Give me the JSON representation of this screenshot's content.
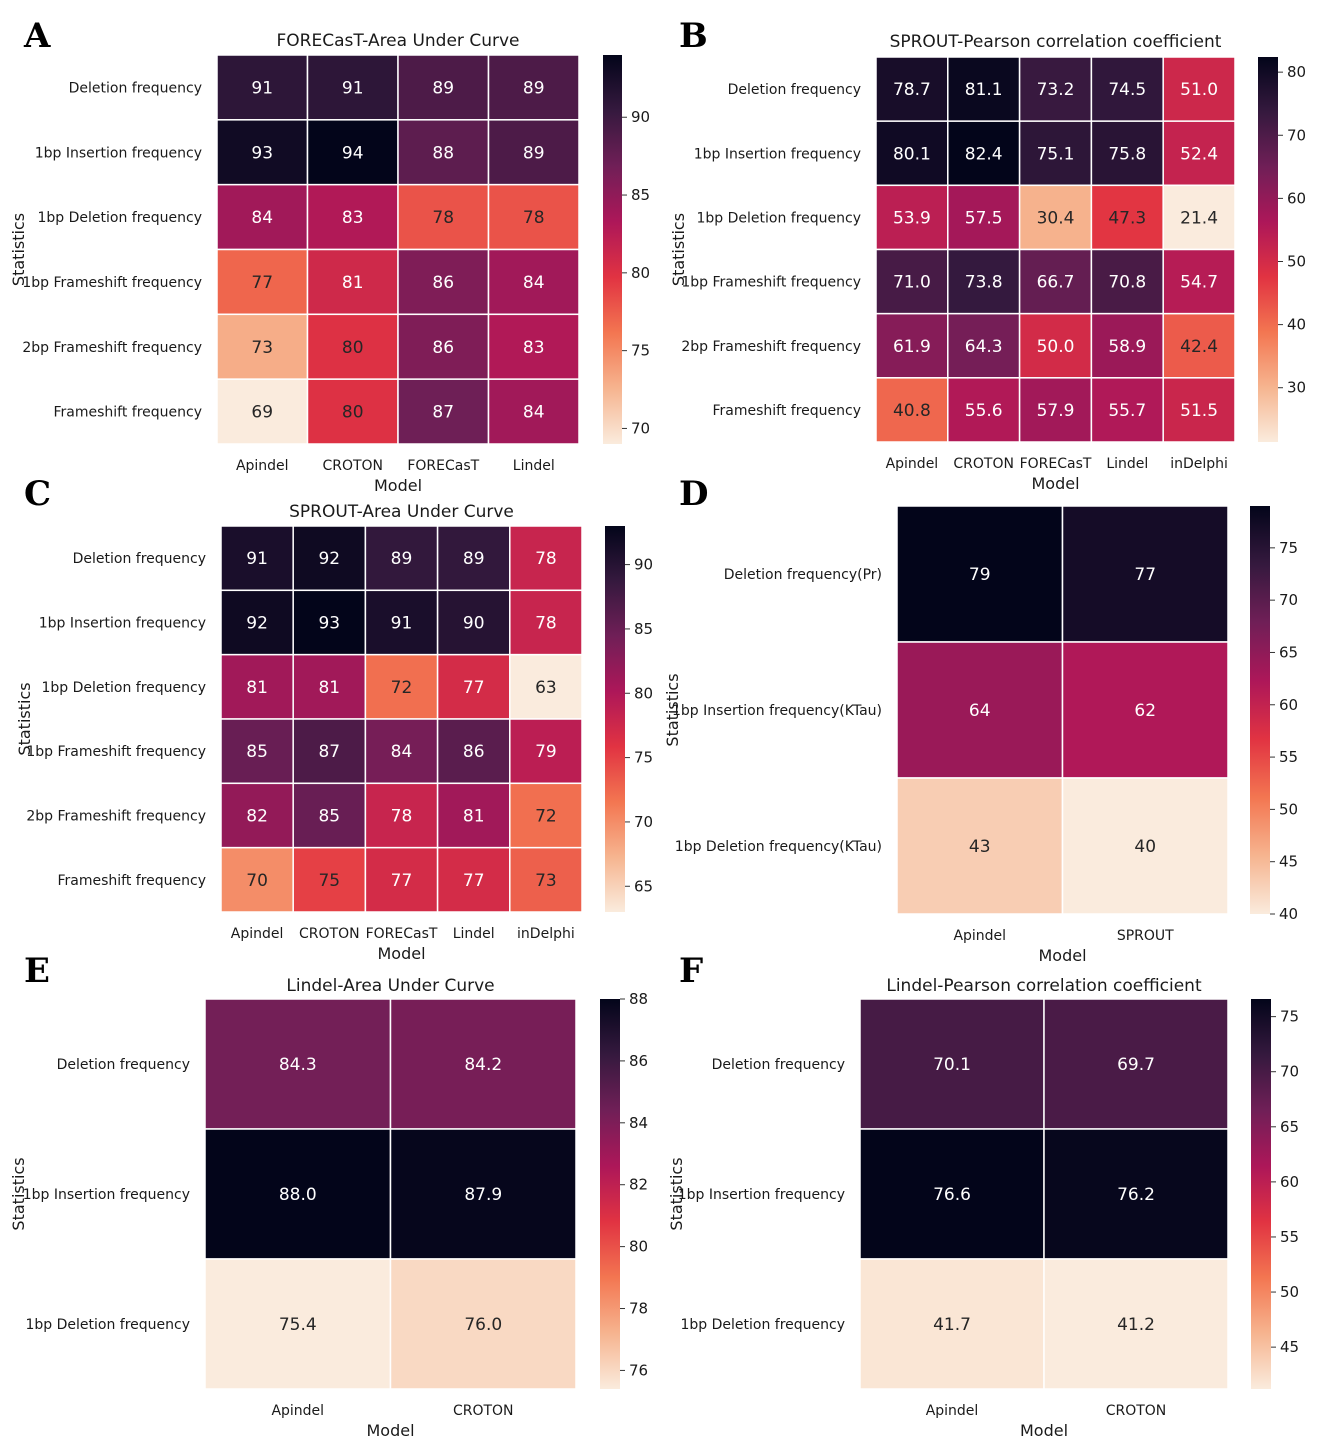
{
  "palette": [
    "#faebdd",
    "#f6b48f",
    "#f37651",
    "#e13342",
    "#ad1759",
    "#701f57",
    "#35193e",
    "#03051a"
  ],
  "chart_data": [
    {
      "type": "heatmap",
      "panel": "A",
      "title": "FORECasT-Area Under Curve",
      "xlabel": "Model",
      "ylabel": "Statistics",
      "rows": [
        "Deletion frequency",
        "1bp Insertion frequency",
        "1bp Deletion frequency",
        "1bp Frameshift frequency",
        "2bp Frameshift frequency",
        "Frameshift frequency"
      ],
      "columns": [
        "Apindel",
        "CROTON",
        "FORECasT",
        "Lindel"
      ],
      "values": [
        [
          91,
          91,
          89,
          89
        ],
        [
          93,
          94,
          88,
          89
        ],
        [
          84,
          83,
          78,
          78
        ],
        [
          77,
          81,
          86,
          84
        ],
        [
          73,
          80,
          86,
          83
        ],
        [
          69,
          80,
          87,
          84
        ]
      ],
      "labels": [
        [
          "91",
          "91",
          "89",
          "89"
        ],
        [
          "93",
          "94",
          "88",
          "89"
        ],
        [
          "84",
          "83",
          "78",
          "78"
        ],
        [
          "77",
          "81",
          "86",
          "84"
        ],
        [
          "73",
          "80",
          "86",
          "83"
        ],
        [
          "69",
          "80",
          "87",
          "84"
        ]
      ],
      "vmin": 69,
      "vmax": 94,
      "colorbar_ticks": [
        70,
        75,
        80,
        85,
        90
      ]
    },
    {
      "type": "heatmap",
      "panel": "B",
      "title": "SPROUT-Pearson correlation coefficient",
      "xlabel": "Model",
      "ylabel": "Statistics",
      "rows": [
        "Deletion frequency",
        "1bp Insertion frequency",
        "1bp Deletion frequency",
        "1bp Frameshift frequency",
        "2bp Frameshift frequency",
        "Frameshift frequency"
      ],
      "columns": [
        "Apindel",
        "CROTON",
        "FORECasT",
        "Lindel",
        "inDelphi"
      ],
      "values": [
        [
          78.7,
          81.1,
          73.2,
          74.5,
          51.0
        ],
        [
          80.1,
          82.4,
          75.1,
          75.8,
          52.4
        ],
        [
          53.9,
          57.5,
          30.4,
          47.3,
          21.4
        ],
        [
          71.0,
          73.8,
          66.7,
          70.8,
          54.7
        ],
        [
          61.9,
          64.3,
          50.0,
          58.9,
          42.4
        ],
        [
          40.8,
          55.6,
          57.9,
          55.7,
          51.5
        ]
      ],
      "labels": [
        [
          "78.7",
          "81.1",
          "73.2",
          "74.5",
          "51.0"
        ],
        [
          "80.1",
          "82.4",
          "75.1",
          "75.8",
          "52.4"
        ],
        [
          "53.9",
          "57.5",
          "30.4",
          "47.3",
          "21.4"
        ],
        [
          "71.0",
          "73.8",
          "66.7",
          "70.8",
          "54.7"
        ],
        [
          "61.9",
          "64.3",
          "50.0",
          "58.9",
          "42.4"
        ],
        [
          "40.8",
          "55.6",
          "57.9",
          "55.7",
          "51.5"
        ]
      ],
      "vmin": 21.4,
      "vmax": 82.4,
      "colorbar_ticks": [
        30,
        40,
        50,
        60,
        70,
        80
      ]
    },
    {
      "type": "heatmap",
      "panel": "C",
      "title": "SPROUT-Area Under Curve",
      "xlabel": "Model",
      "ylabel": "Statistics",
      "rows": [
        "Deletion frequency",
        "1bp Insertion frequency",
        "1bp Deletion frequency",
        "1bp Frameshift frequency",
        "2bp Frameshift frequency",
        "Frameshift frequency"
      ],
      "columns": [
        "Apindel",
        "CROTON",
        "FORECasT",
        "Lindel",
        "inDelphi"
      ],
      "values": [
        [
          91,
          92,
          89,
          89,
          78
        ],
        [
          92,
          93,
          91,
          90,
          78
        ],
        [
          81,
          81,
          72,
          77,
          63
        ],
        [
          85,
          87,
          84,
          86,
          79
        ],
        [
          82,
          85,
          78,
          81,
          72
        ],
        [
          70,
          75,
          77,
          77,
          73
        ]
      ],
      "labels": [
        [
          "91",
          "92",
          "89",
          "89",
          "78"
        ],
        [
          "92",
          "93",
          "91",
          "90",
          "78"
        ],
        [
          "81",
          "81",
          "72",
          "77",
          "63"
        ],
        [
          "85",
          "87",
          "84",
          "86",
          "79"
        ],
        [
          "82",
          "85",
          "78",
          "81",
          "72"
        ],
        [
          "70",
          "75",
          "77",
          "77",
          "73"
        ]
      ],
      "vmin": 63,
      "vmax": 93,
      "colorbar_ticks": [
        65,
        70,
        75,
        80,
        85,
        90
      ]
    },
    {
      "type": "heatmap",
      "panel": "D",
      "title": "",
      "xlabel": "Model",
      "ylabel": "Statistics",
      "rows": [
        "Deletion frequency(Pr)",
        "1bp Insertion frequency(KTau)",
        "1bp Deletion frequency(KTau)"
      ],
      "columns": [
        "Apindel",
        "SPROUT"
      ],
      "values": [
        [
          79,
          77
        ],
        [
          64,
          62
        ],
        [
          43,
          40
        ]
      ],
      "labels": [
        [
          "79",
          "77"
        ],
        [
          "64",
          "62"
        ],
        [
          "43",
          "40"
        ]
      ],
      "vmin": 40,
      "vmax": 79,
      "colorbar_ticks": [
        40,
        45,
        50,
        55,
        60,
        65,
        70,
        75
      ]
    },
    {
      "type": "heatmap",
      "panel": "E",
      "title": "Lindel-Area Under Curve",
      "xlabel": "Model",
      "ylabel": "Statistics",
      "rows": [
        "Deletion frequency",
        "1bp Insertion frequency",
        "1bp Deletion frequency"
      ],
      "columns": [
        "Apindel",
        "CROTON"
      ],
      "values": [
        [
          84.3,
          84.2
        ],
        [
          88.0,
          87.9
        ],
        [
          75.4,
          76.0
        ]
      ],
      "labels": [
        [
          "84.3",
          "84.2"
        ],
        [
          "88.0",
          "87.9"
        ],
        [
          "75.4",
          "76.0"
        ]
      ],
      "vmin": 75.4,
      "vmax": 88.0,
      "colorbar_ticks": [
        76,
        78,
        80,
        82,
        84,
        86,
        88
      ]
    },
    {
      "type": "heatmap",
      "panel": "F",
      "title": "Lindel-Pearson correlation coefficient",
      "xlabel": "Model",
      "ylabel": "Statistics",
      "rows": [
        "Deletion frequency",
        "1bp Insertion frequency",
        "1bp Deletion frequency"
      ],
      "columns": [
        "Apindel",
        "CROTON"
      ],
      "values": [
        [
          70.1,
          69.7
        ],
        [
          76.6,
          76.2
        ],
        [
          41.7,
          41.2
        ]
      ],
      "labels": [
        [
          "70.1",
          "69.7"
        ],
        [
          "76.6",
          "76.2"
        ],
        [
          "41.7",
          "41.2"
        ]
      ],
      "vmin": 41.2,
      "vmax": 76.6,
      "colorbar_ticks": [
        45,
        50,
        55,
        60,
        65,
        70,
        75
      ]
    }
  ]
}
